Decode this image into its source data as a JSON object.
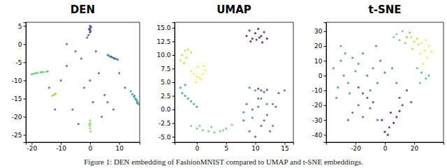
{
  "chart_data": [
    {
      "type": "scatter",
      "title": "DEN",
      "xlim": [
        -22,
        17
      ],
      "xticks": [
        -20,
        -10,
        0,
        10
      ],
      "ylim": [
        -27,
        6
      ],
      "yticks": [
        -25,
        -20,
        -15,
        -10,
        -5,
        0,
        5
      ],
      "series": [
        {
          "color": "#443a83",
          "x": [
            0,
            0.2,
            -0.3,
            0.1,
            0,
            -0.5,
            -1,
            0.3,
            -0.2,
            0.1
          ],
          "values": [
            5,
            4.5,
            4.2,
            3.8,
            3.2,
            2.5,
            1.8,
            4.8,
            4,
            3.5
          ]
        },
        {
          "color": "#2c728e",
          "x": [
            6,
            6.5,
            7,
            7.5,
            8,
            8.5,
            9,
            9.5,
            7.2,
            8.2
          ],
          "values": [
            -3,
            -3.2,
            -3.5,
            -3.6,
            -3.8,
            -4,
            -4.1,
            -4.3,
            -3.4,
            -3.9
          ]
        },
        {
          "color": "#21908d",
          "x": [
            14,
            14.5,
            15,
            15.5,
            16,
            16.3,
            16.6,
            15.2,
            15.8,
            16.1
          ],
          "values": [
            -13,
            -13.8,
            -14.5,
            -15,
            -15.5,
            -16,
            -16.5,
            -14.2,
            -15.3,
            -16.2
          ]
        },
        {
          "color": "#5dc863",
          "x": [
            -20,
            -19.5,
            -19,
            -18,
            -17,
            -16,
            -15,
            -14.5,
            -18.5,
            -16.5
          ],
          "values": [
            -8.3,
            -8.2,
            -8.1,
            -7.9,
            -7.8,
            -7.7,
            -7.6,
            -7.5,
            -8,
            -7.7
          ]
        },
        {
          "color": "#aadc32",
          "x": [
            -13,
            -12.5,
            -12,
            -11.8,
            -12.3
          ],
          "values": [
            -14.2,
            -14,
            -13.8,
            -13.6,
            -13.9
          ]
        },
        {
          "color": "#7ad151",
          "x": [
            0,
            0.1,
            -0.1,
            0,
            0.2,
            -0.2
          ],
          "values": [
            -21,
            -21.8,
            -22.5,
            -23.2,
            -24,
            -22
          ]
        },
        {
          "color": "#3b528b",
          "x": [
            -5,
            -8,
            3,
            5,
            -2,
            -10,
            10,
            2,
            -6,
            8,
            -14,
            12,
            4,
            -3,
            0,
            -12,
            6,
            -8,
            1,
            -4
          ],
          "values": [
            -2,
            -6,
            -8,
            -14,
            -12,
            -10,
            -8,
            -2,
            -18,
            -18,
            -12,
            -12,
            -20,
            -4,
            -10,
            -18,
            -16,
            0,
            -16,
            -22
          ]
        }
      ]
    },
    {
      "type": "scatter",
      "title": "UMAP",
      "xlim": [
        -3.8,
        16.5
      ],
      "xticks": [
        0,
        5,
        10,
        15
      ],
      "ylim": [
        -6,
        16
      ],
      "yticks": [
        {
          "value": -5,
          "label": "-5.0"
        },
        {
          "value": -2.5,
          "label": "-2.5"
        },
        {
          "value": 0,
          "label": "0.0"
        },
        {
          "value": 2.5,
          "label": "2.5"
        },
        {
          "value": 5,
          "label": "5.0"
        },
        {
          "value": 7.5,
          "label": "7.5"
        },
        {
          "value": 10,
          "label": "10.0"
        },
        {
          "value": 12.5,
          "label": "12.5"
        },
        {
          "value": 15,
          "label": "15.0"
        }
      ],
      "series": [
        {
          "color": "#440154",
          "x": [
            8.5,
            9,
            9.5,
            10,
            10.5,
            11,
            11.5,
            12,
            9.2,
            10.2,
            11.2,
            10.7
          ],
          "values": [
            13.5,
            14.5,
            13,
            14,
            14.8,
            13.5,
            14.2,
            13,
            12.5,
            12.8,
            12.3,
            13.2
          ]
        },
        {
          "color": "#fde725",
          "x": [
            -1,
            -0.5,
            0,
            0.5,
            1,
            1.5,
            0.2,
            -0.2,
            0.8,
            1.2
          ],
          "values": [
            7,
            6.5,
            6,
            5.8,
            6.5,
            7.2,
            7.8,
            5,
            5.5,
            8
          ]
        },
        {
          "color": "#b5de2b",
          "x": [
            -2.5,
            -2,
            -1.5,
            -1,
            -2.8,
            -2.2,
            -1.8
          ],
          "values": [
            10,
            10.8,
            11,
            10.5,
            9,
            8.5,
            9.5
          ]
        },
        {
          "color": "#21918c",
          "x": [
            -2.5,
            -2,
            -1.5,
            -1,
            -2.8,
            -2,
            -0.5,
            0
          ],
          "values": [
            3,
            2.5,
            2,
            1.5,
            4,
            4.5,
            1,
            0.5
          ]
        },
        {
          "color": "#5ec962",
          "x": [
            -1,
            0,
            1,
            2,
            3,
            4,
            5,
            6,
            0.5,
            2.5,
            4.5
          ],
          "values": [
            -3,
            -3.5,
            -3.8,
            -4,
            -4.2,
            -4,
            -3.5,
            -2.8,
            -3,
            -3.2,
            -3.8
          ]
        },
        {
          "color": "#3b528b",
          "x": [
            8,
            9,
            10,
            11,
            12,
            13,
            14,
            15,
            9.5,
            10.5,
            11.5,
            12.5,
            13.5,
            8.5
          ],
          "values": [
            -2,
            -4,
            -5,
            -3,
            -1,
            1,
            3,
            3.5,
            0,
            2,
            -2,
            -4,
            0.5,
            1
          ]
        },
        {
          "color": "#2c728e",
          "x": [
            9,
            10,
            11,
            12,
            13,
            8,
            9.5,
            10.5
          ],
          "values": [
            4,
            3.5,
            2,
            1,
            -3,
            -0.5,
            -1.5,
            0.5
          ]
        },
        {
          "color": "#472d7b",
          "x": [
            10.5,
            11,
            11.5,
            12
          ],
          "values": [
            3.8,
            3.5,
            3.2,
            3.6
          ]
        }
      ]
    },
    {
      "type": "scatter",
      "title": "t-SNE",
      "xlim": [
        -40,
        40
      ],
      "xticks": [
        -20,
        0,
        20
      ],
      "ylim": [
        -45,
        36
      ],
      "yticks": [
        -40,
        -30,
        -20,
        -10,
        0,
        10,
        20,
        30
      ],
      "series": [
        {
          "color": "#fde725",
          "x": [
            25,
            28,
            30,
            27,
            24,
            29,
            32,
            26
          ],
          "values": [
            22,
            24,
            20,
            17,
            15,
            12,
            16,
            8
          ]
        },
        {
          "color": "#b5de2b",
          "x": [
            18,
            20,
            22,
            19,
            23
          ],
          "values": [
            26,
            23,
            25,
            18,
            21
          ]
        },
        {
          "color": "#5ec962",
          "x": [
            8,
            12,
            15,
            10,
            14,
            6,
            17
          ],
          "values": [
            28,
            30,
            26,
            24,
            22,
            26,
            29
          ]
        },
        {
          "color": "#35b779",
          "x": [
            22,
            25,
            28,
            24,
            30
          ],
          "values": [
            5,
            2,
            -2,
            -5,
            0
          ]
        },
        {
          "color": "#21918c",
          "x": [
            -35,
            -30,
            -28,
            -25,
            -32,
            -22,
            -18,
            -27,
            -33,
            -20,
            -24,
            -30
          ],
          "values": [
            5,
            10,
            0,
            -5,
            -8,
            12,
            8,
            15,
            -15,
            3,
            -12,
            20
          ]
        },
        {
          "color": "#31688e",
          "x": [
            -12,
            -8,
            -5,
            -10,
            -3,
            -15,
            -6,
            0,
            5,
            8
          ],
          "values": [
            0,
            5,
            -5,
            -10,
            10,
            15,
            20,
            2,
            5,
            -5
          ]
        },
        {
          "color": "#3b528b",
          "x": [
            -18,
            -22,
            -15,
            -10,
            -5,
            -25
          ],
          "values": [
            -20,
            -25,
            -28,
            -22,
            -30,
            -30
          ]
        },
        {
          "color": "#482878",
          "x": [
            -15,
            -12,
            -18,
            -8,
            10,
            15,
            12,
            18
          ],
          "values": [
            -12,
            -15,
            -8,
            -18,
            -15,
            -10,
            -20,
            -18
          ]
        },
        {
          "color": "#440154",
          "x": [
            0,
            3,
            6,
            8,
            -2,
            4,
            10,
            2
          ],
          "values": [
            -38,
            -35,
            -32,
            -28,
            -30,
            -25,
            -24,
            -40
          ]
        }
      ]
    }
  ],
  "caption": "Figure 1: DEN embedding of FashionMNIST compared to UMAP and t-SNE embeddings."
}
